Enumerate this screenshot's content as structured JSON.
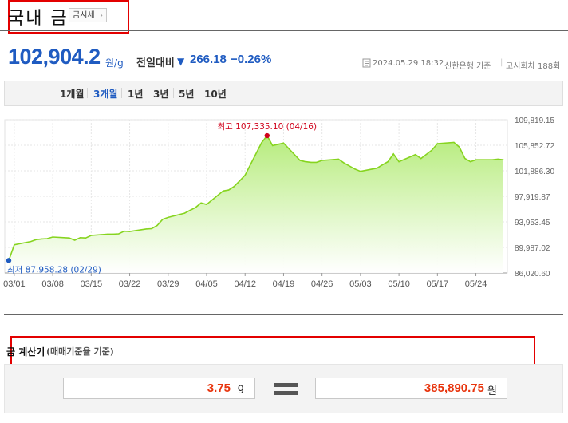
{
  "header": {
    "title": "국내 금",
    "notice_button": "금시세",
    "notice_chevron": "›"
  },
  "price": {
    "value": "102,904.2",
    "unit": "원/g",
    "change_label": "전일대비",
    "change_direction_icon": "▼",
    "change_value": "266.18",
    "change_percent": "−0.26%",
    "meta_icon": "document-icon",
    "timestamp": "2024.05.29 18:32",
    "source": "신한은행 기준",
    "round": "고시회차 188회"
  },
  "period_tabs": [
    "1개월",
    "3개월",
    "1년",
    "3년",
    "5년",
    "10년"
  ],
  "active_tab": "3개월",
  "chart_data": {
    "type": "area",
    "x": [
      "2024-02-29",
      "2024-03-01",
      "2024-03-04",
      "2024-03-05",
      "2024-03-06",
      "2024-03-07",
      "2024-03-08",
      "2024-03-11",
      "2024-03-12",
      "2024-03-13",
      "2024-03-14",
      "2024-03-15",
      "2024-03-18",
      "2024-03-19",
      "2024-03-20",
      "2024-03-21",
      "2024-03-22",
      "2024-03-25",
      "2024-03-26",
      "2024-03-27",
      "2024-03-28",
      "2024-03-29",
      "2024-04-01",
      "2024-04-02",
      "2024-04-03",
      "2024-04-04",
      "2024-04-05",
      "2024-04-08",
      "2024-04-09",
      "2024-04-10",
      "2024-04-11",
      "2024-04-12",
      "2024-04-15",
      "2024-04-16",
      "2024-04-17",
      "2024-04-18",
      "2024-04-19",
      "2024-04-22",
      "2024-04-23",
      "2024-04-24",
      "2024-04-25",
      "2024-04-26",
      "2024-04-29",
      "2024-04-30",
      "2024-05-02",
      "2024-05-03",
      "2024-05-06",
      "2024-05-07",
      "2024-05-08",
      "2024-05-09",
      "2024-05-10",
      "2024-05-13",
      "2024-05-14",
      "2024-05-16",
      "2024-05-17",
      "2024-05-20",
      "2024-05-21",
      "2024-05-22",
      "2024-05-23",
      "2024-05-24",
      "2024-05-27",
      "2024-05-28",
      "2024-05-29"
    ],
    "values": [
      87958.28,
      90400,
      90900,
      91200,
      91300,
      91350,
      91600,
      91450,
      91100,
      91500,
      91450,
      91850,
      92050,
      92050,
      92100,
      92500,
      92450,
      92850,
      92900,
      93400,
      94350,
      94650,
      95300,
      95750,
      96200,
      96900,
      96650,
      98750,
      98900,
      99450,
      100300,
      101200,
      106250,
      107335.1,
      105800,
      106000,
      106200,
      103500,
      103300,
      103200,
      103200,
      103500,
      103700,
      103100,
      102150,
      101800,
      102300,
      102800,
      103300,
      104500,
      103300,
      104400,
      103800,
      105100,
      106100,
      106300,
      105550,
      103800,
      103300,
      103600,
      103600,
      103700,
      103600
    ],
    "x_tick_labels": [
      "03/01",
      "03/08",
      "03/15",
      "03/22",
      "03/29",
      "04/05",
      "04/12",
      "04/19",
      "04/26",
      "05/03",
      "05/10",
      "05/17",
      "05/24"
    ],
    "x_tick_dates": [
      "2024-03-01",
      "2024-03-08",
      "2024-03-15",
      "2024-03-22",
      "2024-03-29",
      "2024-04-05",
      "2024-04-12",
      "2024-04-19",
      "2024-04-26",
      "2024-05-03",
      "2024-05-10",
      "2024-05-17",
      "2024-05-24"
    ],
    "y_tick_labels": [
      "109,819.15",
      "105,852.72",
      "101,886.30",
      "97,919.87",
      "93,953.45",
      "89,987.02",
      "86,020.60"
    ],
    "y_tick_values": [
      109819.15,
      105852.72,
      101886.3,
      97919.87,
      93953.45,
      89987.02,
      86020.6
    ],
    "ylim": [
      86020.6,
      109819.15
    ],
    "grid": true,
    "max": {
      "label": "최고",
      "value": "107,335.10",
      "date": "(04/16)"
    },
    "min": {
      "label": "최저",
      "value": "87,958.28",
      "date": "(02/29)"
    },
    "line_color": "#86d41f",
    "fill_top_color": "#b6ec7c",
    "max_color": "#d0021b",
    "min_color": "#1f5bc1"
  },
  "calculator": {
    "title": "금 계산기",
    "subtitle": "(매매기준율 기준)",
    "weight_value": "3.75",
    "weight_unit": "g",
    "result_value": "385,890.75",
    "result_unit": "원"
  },
  "colors": {
    "accent_blue": "#1f5bc1",
    "highlight_red": "#e30000",
    "value_red": "#e8350e"
  }
}
